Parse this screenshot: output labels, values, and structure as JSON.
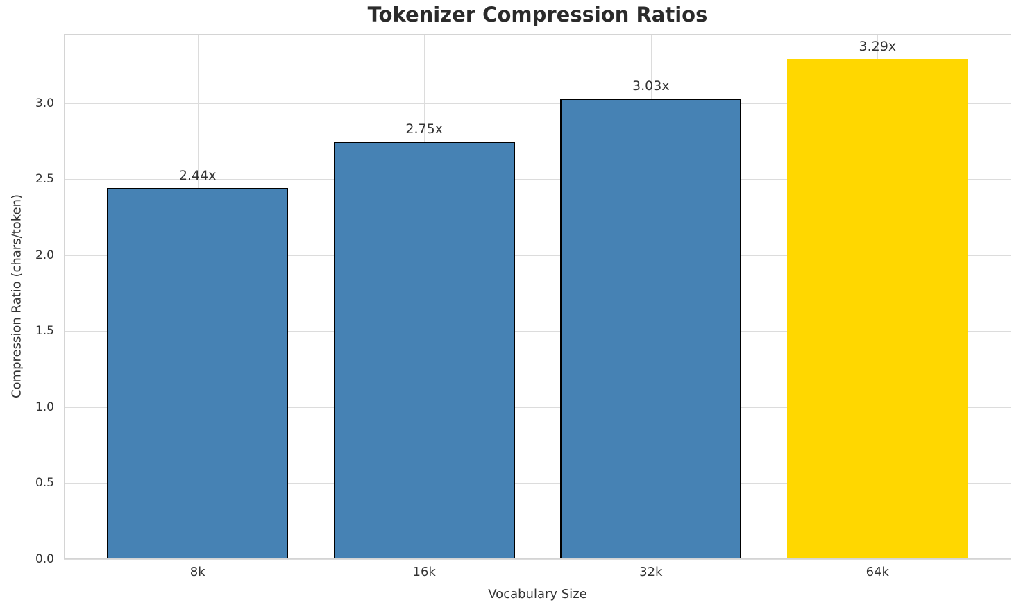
{
  "chart_data": {
    "type": "bar",
    "title": "Tokenizer Compression Ratios",
    "xlabel": "Vocabulary Size",
    "ylabel": "Compression Ratio (chars/token)",
    "categories": [
      "8k",
      "16k",
      "32k",
      "64k"
    ],
    "values": [
      2.44,
      2.75,
      3.03,
      3.29
    ],
    "value_labels": [
      "2.44x",
      "2.75x",
      "3.03x",
      "3.29x"
    ],
    "bar_colors": [
      "#4682b4",
      "#4682b4",
      "#4682b4",
      "#ffd700"
    ],
    "bar_edge_colors": [
      "#000000",
      "#000000",
      "#000000",
      "none"
    ],
    "yticks": [
      0,
      0.5,
      1,
      1.5,
      2,
      2.5,
      3
    ],
    "ytick_labels": [
      "0.0",
      "0.5",
      "1.0",
      "1.5",
      "2.0",
      "2.5",
      "3.0"
    ],
    "ylim": [
      0,
      3.455
    ],
    "xlim": [
      -0.59,
      3.59
    ],
    "bar_half_width": 0.4,
    "grid": true,
    "legend_position": "none",
    "accent_colors": {
      "steel_blue": "#4682b4",
      "gold": "#ffd700",
      "grid": "#dcdcdc",
      "frame": "#d4d4d4",
      "text": "#333333"
    }
  }
}
